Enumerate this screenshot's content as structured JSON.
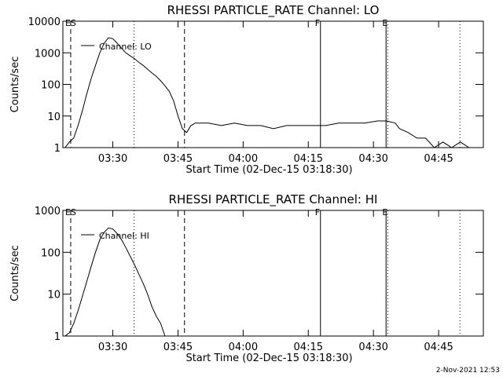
{
  "chart_data": [
    {
      "type": "line",
      "title": "RHESSI PARTICLE_RATE Channel: LO",
      "xlabel": "Start Time (02-Dec-15 03:18:30)",
      "ylabel": "Counts/sec",
      "yscale": "log",
      "xlim": [
        198.5,
        295.3
      ],
      "ylim": [
        1,
        10000
      ],
      "xticks": [
        {
          "value": 210,
          "label": "03:30"
        },
        {
          "value": 225,
          "label": "03:45"
        },
        {
          "value": 240,
          "label": "04:00"
        },
        {
          "value": 255,
          "label": "04:15"
        },
        {
          "value": 270,
          "label": "04:30"
        },
        {
          "value": 285,
          "label": "04:45"
        }
      ],
      "yticks": [
        1,
        10,
        100,
        1000,
        10000
      ],
      "legend": "upper left",
      "vlines": [
        {
          "x": 200.3,
          "style": "dashed",
          "label": "ES"
        },
        {
          "x": 214.9,
          "style": "dotted"
        },
        {
          "x": 226.5,
          "style": "dashed"
        },
        {
          "x": 257.8,
          "style": "solid",
          "label": "F"
        },
        {
          "x": 272.9,
          "style": "solid"
        },
        {
          "x": 273.3,
          "style": "dotted",
          "label": "E"
        },
        {
          "x": 289.9,
          "style": "dotted"
        }
      ],
      "series": [
        {
          "name": "Channel: LO",
          "color": "#000000",
          "x": [
            199,
            200,
            201,
            202,
            203,
            204,
            205,
            206,
            207,
            208,
            209,
            210,
            211,
            212,
            213,
            214,
            215,
            216,
            217,
            218,
            219,
            220,
            221,
            222,
            223,
            224,
            225,
            226,
            227,
            228,
            229,
            232,
            235,
            238,
            241,
            244,
            247,
            250,
            253,
            256,
            259,
            262,
            265,
            268,
            271,
            273,
            275,
            276,
            278,
            280,
            282,
            284,
            286,
            288,
            290,
            292
          ],
          "values": [
            1,
            1.5,
            2,
            5,
            15,
            50,
            150,
            400,
            1000,
            2000,
            3000,
            2800,
            2000,
            1400,
            1000,
            800,
            650,
            500,
            400,
            300,
            230,
            180,
            130,
            90,
            60,
            30,
            10,
            4,
            3,
            5,
            6,
            6,
            5,
            6,
            5,
            5,
            4,
            5,
            5,
            5,
            5,
            6,
            6,
            6,
            7,
            7,
            6,
            4,
            3,
            2,
            2,
            1,
            1.5,
            1,
            1.5,
            1
          ]
        }
      ]
    },
    {
      "type": "line",
      "title": "RHESSI PARTICLE_RATE Channel: HI",
      "xlabel": "Start Time (02-Dec-15 03:18:30)",
      "ylabel": "Counts/sec",
      "yscale": "log",
      "xlim": [
        198.5,
        295.3
      ],
      "ylim": [
        1,
        1000
      ],
      "xticks": [
        {
          "value": 210,
          "label": "03:30"
        },
        {
          "value": 225,
          "label": "03:45"
        },
        {
          "value": 240,
          "label": "04:00"
        },
        {
          "value": 255,
          "label": "04:15"
        },
        {
          "value": 270,
          "label": "04:30"
        },
        {
          "value": 285,
          "label": "04:45"
        }
      ],
      "yticks": [
        1,
        10,
        100,
        1000
      ],
      "legend": "upper left",
      "vlines": [
        {
          "x": 200.3,
          "style": "dashed",
          "label": "ES"
        },
        {
          "x": 214.9,
          "style": "dotted"
        },
        {
          "x": 226.5,
          "style": "dashed"
        },
        {
          "x": 257.8,
          "style": "solid",
          "label": "F"
        },
        {
          "x": 272.9,
          "style": "solid"
        },
        {
          "x": 273.3,
          "style": "dotted",
          "label": "E"
        },
        {
          "x": 289.9,
          "style": "dotted"
        }
      ],
      "series": [
        {
          "name": "Channel: HI",
          "color": "#000000",
          "x": [
            199,
            200,
            201,
            202,
            203,
            204,
            205,
            206,
            207,
            208,
            209,
            210,
            211,
            212,
            213,
            214,
            215,
            216,
            217,
            218,
            219,
            220,
            221,
            222
          ],
          "values": [
            1,
            1.2,
            2,
            4,
            9,
            20,
            45,
            100,
            200,
            300,
            380,
            360,
            280,
            200,
            130,
            80,
            50,
            30,
            18,
            10,
            5,
            3,
            2,
            1
          ]
        }
      ]
    }
  ],
  "footer": "2-Nov-2021 12:53"
}
